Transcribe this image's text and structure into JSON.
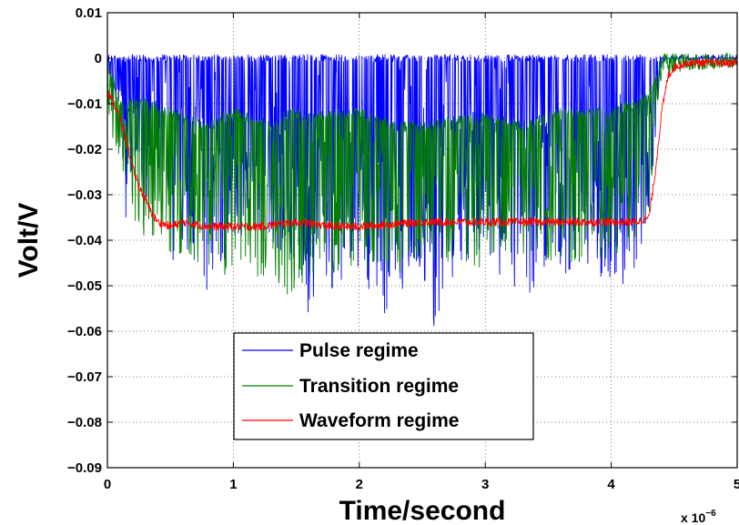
{
  "chart_data": {
    "type": "line",
    "title": "",
    "xlabel": "Time/second",
    "ylabel": "Volt/V",
    "x_multiplier_base": "x 10",
    "x_multiplier_exponent": "−6",
    "xlim": [
      0,
      5
    ],
    "ylim": [
      -0.09,
      0.01
    ],
    "grid": true,
    "legend_position": "lower-center",
    "x_ticks": [
      0,
      1,
      2,
      3,
      4,
      5
    ],
    "x_tick_labels": [
      "0",
      "1",
      "2",
      "3",
      "4",
      "5"
    ],
    "y_ticks": [
      0.01,
      0,
      -0.01,
      -0.02,
      -0.03,
      -0.04,
      -0.05,
      -0.06,
      -0.07,
      -0.08,
      -0.09
    ],
    "y_tick_labels": [
      "0.01",
      "0",
      "−0.01",
      "−0.02",
      "−0.03",
      "−0.04",
      "−0.05",
      "−0.06",
      "−0.07",
      "−0.08",
      "−0.09"
    ],
    "series": [
      {
        "name": "Pulse regime",
        "color": "#0000ff",
        "x": [
          0,
          0.05,
          0.1,
          0.15,
          0.2,
          0.3,
          0.4,
          0.5,
          0.6,
          0.8,
          1.0,
          1.2,
          1.5,
          1.6,
          1.8,
          2.0,
          2.2,
          2.5,
          2.6,
          2.8,
          3.0,
          3.2,
          3.35,
          3.5,
          3.65,
          3.8,
          4.0,
          4.1,
          4.2,
          4.3,
          4.4,
          4.5,
          4.7,
          5.0
        ],
        "y": [
          0,
          -0.012,
          -0.01,
          -0.043,
          -0.02,
          -0.035,
          -0.028,
          -0.046,
          -0.04,
          -0.052,
          -0.04,
          -0.042,
          -0.045,
          -0.058,
          -0.05,
          -0.047,
          -0.057,
          -0.047,
          -0.06,
          -0.047,
          -0.045,
          -0.05,
          -0.06,
          -0.047,
          -0.057,
          -0.045,
          -0.05,
          -0.052,
          -0.045,
          -0.035,
          0,
          0,
          0,
          0
        ],
        "baseline": [
          0,
          0,
          0,
          0,
          0,
          0,
          0,
          0,
          0,
          0,
          0,
          0,
          0,
          0,
          0,
          0,
          0,
          0,
          0,
          0,
          0,
          0,
          0,
          0,
          0,
          0,
          0,
          0,
          0,
          0,
          0,
          0,
          0,
          0
        ]
      },
      {
        "name": "Transition regime",
        "color": "#007f00",
        "x": [
          0,
          0.1,
          0.2,
          0.3,
          0.5,
          0.8,
          1.0,
          1.3,
          1.45,
          1.6,
          2.0,
          2.3,
          2.5,
          3.0,
          3.3,
          3.6,
          4.0,
          4.2,
          4.3,
          4.35,
          4.4,
          4.5,
          5.0
        ],
        "y": [
          -0.015,
          -0.025,
          -0.035,
          -0.04,
          -0.043,
          -0.046,
          -0.049,
          -0.048,
          -0.054,
          -0.049,
          -0.047,
          -0.048,
          -0.045,
          -0.046,
          -0.043,
          -0.045,
          -0.044,
          -0.042,
          -0.037,
          -0.015,
          -0.004,
          -0.003,
          -0.002
        ],
        "baseline": [
          0,
          -0.01,
          -0.01,
          -0.01,
          -0.012,
          -0.015,
          -0.012,
          -0.015,
          -0.012,
          -0.013,
          -0.012,
          -0.015,
          -0.015,
          -0.013,
          -0.015,
          -0.012,
          -0.012,
          -0.01,
          -0.008,
          -0.005,
          0,
          0,
          0
        ]
      },
      {
        "name": "Waveform regime",
        "color": "#ff0000",
        "x": [
          0,
          0.05,
          0.1,
          0.15,
          0.2,
          0.25,
          0.3,
          0.35,
          0.4,
          0.5,
          0.6,
          0.8,
          1.0,
          1.2,
          1.5,
          1.8,
          2.0,
          2.5,
          3.0,
          3.5,
          4.0,
          4.2,
          4.3,
          4.35,
          4.4,
          4.45,
          4.5,
          4.6,
          5.0
        ],
        "y": [
          -0.007,
          -0.01,
          -0.013,
          -0.018,
          -0.024,
          -0.028,
          -0.031,
          -0.034,
          -0.036,
          -0.037,
          -0.036,
          -0.037,
          -0.037,
          -0.037,
          -0.036,
          -0.037,
          -0.037,
          -0.036,
          -0.036,
          -0.036,
          -0.036,
          -0.036,
          -0.035,
          -0.025,
          -0.012,
          -0.004,
          -0.002,
          -0.001,
          -0.001
        ]
      }
    ]
  }
}
